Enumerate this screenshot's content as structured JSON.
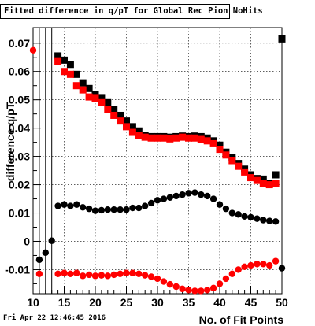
{
  "title": "Fitted difference in q/pT for Global Rec Pion NoHits",
  "timestamp": "Fri Apr 22 12:46:45 2016",
  "chart_data": {
    "type": "scatter",
    "title": "Fitted difference in q/pT for Global Rec Pion NoHits",
    "xlabel": "No. of Fit Points",
    "ylabel": "difference q/pT",
    "xlim": [
      10,
      50
    ],
    "ylim": [
      -0.0185,
      0.0755
    ],
    "xticks": [
      "10",
      "15",
      "20",
      "25",
      "30",
      "35",
      "40",
      "45",
      "50"
    ],
    "yticks": [
      "-0.01",
      "0",
      "0.01",
      "0.02",
      "0.03",
      "0.04",
      "0.05",
      "0.06",
      "0.07"
    ],
    "ytick_values": [
      -0.01,
      0,
      0.01,
      0.02,
      0.03,
      0.04,
      0.05,
      0.06,
      0.07
    ],
    "grid": true,
    "vertical_lines": [
      11,
      12,
      13
    ],
    "series": [
      {
        "marker": "square",
        "color": "#000000",
        "x": [
          14,
          15,
          16,
          17,
          18,
          19,
          20,
          21,
          22,
          23,
          24,
          25,
          26,
          27,
          28,
          29,
          30,
          31,
          32,
          33,
          34,
          35,
          36,
          37,
          38,
          39,
          40,
          41,
          42,
          43,
          44,
          45,
          46,
          47,
          48,
          49,
          50
        ],
        "values": [
          0.0655,
          0.064,
          0.0625,
          0.059,
          0.056,
          0.054,
          0.052,
          0.0505,
          0.049,
          0.0465,
          0.0445,
          0.0425,
          0.0405,
          0.039,
          0.0375,
          0.037,
          0.037,
          0.037,
          0.0368,
          0.037,
          0.0372,
          0.037,
          0.0372,
          0.037,
          0.0365,
          0.0355,
          0.034,
          0.0315,
          0.0295,
          0.0275,
          0.0255,
          0.0235,
          0.0222,
          0.022,
          0.0205,
          0.0235,
          0.0715
        ]
      },
      {
        "marker": "square",
        "color": "#ff0000",
        "x": [
          14,
          15,
          16,
          17,
          18,
          19,
          20,
          21,
          22,
          23,
          24,
          25,
          26,
          27,
          28,
          29,
          30,
          31,
          32,
          33,
          34,
          35,
          36,
          37,
          38,
          39,
          40,
          41,
          42,
          43,
          44,
          45,
          46,
          47,
          48,
          49
        ],
        "values": [
          0.0635,
          0.06,
          0.059,
          0.055,
          0.0535,
          0.051,
          0.0505,
          0.049,
          0.0465,
          0.0445,
          0.0425,
          0.0405,
          0.0385,
          0.0375,
          0.0368,
          0.0365,
          0.0365,
          0.0365,
          0.0362,
          0.0365,
          0.0368,
          0.0365,
          0.0365,
          0.036,
          0.0355,
          0.0345,
          0.0325,
          0.0305,
          0.0285,
          0.0265,
          0.0245,
          0.0225,
          0.0215,
          0.0205,
          0.02,
          0.0205
        ]
      },
      {
        "marker": "circle",
        "color": "#000000",
        "x": [
          11,
          12,
          13,
          14,
          15,
          16,
          17,
          18,
          19,
          20,
          21,
          22,
          23,
          24,
          25,
          26,
          27,
          28,
          29,
          30,
          31,
          32,
          33,
          34,
          35,
          36,
          37,
          38,
          39,
          40,
          41,
          42,
          43,
          44,
          45,
          46,
          47,
          48,
          49,
          50
        ],
        "values": [
          -0.0065,
          -0.004,
          0.0002,
          0.0125,
          0.013,
          0.0125,
          0.013,
          0.012,
          0.0115,
          0.0108,
          0.011,
          0.0112,
          0.0112,
          0.0112,
          0.0112,
          0.0118,
          0.0118,
          0.0125,
          0.0135,
          0.0145,
          0.015,
          0.0155,
          0.016,
          0.0165,
          0.017,
          0.0172,
          0.0165,
          0.016,
          0.015,
          0.013,
          0.0115,
          0.01,
          0.0095,
          0.0088,
          0.0085,
          0.008,
          0.0075,
          0.0072,
          0.007,
          -0.0095
        ]
      },
      {
        "marker": "circle",
        "color": "#ff0000",
        "x": [
          10,
          11,
          14,
          15,
          16,
          17,
          18,
          19,
          20,
          21,
          22,
          23,
          24,
          25,
          26,
          27,
          28,
          29,
          30,
          31,
          32,
          33,
          34,
          35,
          36,
          37,
          38,
          39,
          40,
          41,
          42,
          43,
          44,
          45,
          46,
          47,
          48,
          49
        ],
        "values": [
          0.0675,
          -0.0115,
          -0.0115,
          -0.0112,
          -0.0115,
          -0.0112,
          -0.0122,
          -0.0118,
          -0.0122,
          -0.012,
          -0.0122,
          -0.0118,
          -0.0115,
          -0.0112,
          -0.0112,
          -0.0115,
          -0.012,
          -0.0125,
          -0.0132,
          -0.0142,
          -0.0152,
          -0.016,
          -0.0168,
          -0.0172,
          -0.0175,
          -0.0175,
          -0.0172,
          -0.0165,
          -0.015,
          -0.0132,
          -0.0115,
          -0.01,
          -0.009,
          -0.0085,
          -0.008,
          -0.008,
          -0.0085,
          -0.007
        ]
      }
    ]
  }
}
